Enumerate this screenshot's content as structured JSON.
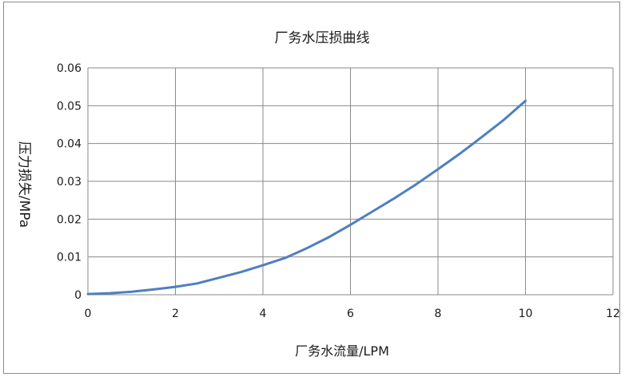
{
  "chart_data": {
    "type": "line",
    "title": "厂务水压损曲线",
    "xlabel": "厂务水流量/LPM",
    "ylabel": "压力损失/MPa",
    "xlim": [
      0,
      12
    ],
    "ylim": [
      0,
      0.06
    ],
    "x_ticks": [
      0,
      2,
      4,
      6,
      8,
      10,
      12
    ],
    "y_ticks": [
      0,
      0.01,
      0.02,
      0.03,
      0.04,
      0.05,
      0.06
    ],
    "x_tick_labels": [
      "0",
      "2",
      "4",
      "6",
      "8",
      "10",
      "12"
    ],
    "y_tick_labels": [
      "0",
      "0.01",
      "0.02",
      "0.03",
      "0.04",
      "0.05",
      "0.06"
    ],
    "grid": true,
    "series": [
      {
        "color": "#4f7fbf",
        "x": [
          0,
          0.5,
          1,
          1.5,
          2,
          2.5,
          3,
          3.5,
          4,
          4.5,
          5,
          5.5,
          6,
          6.5,
          7,
          7.5,
          8,
          8.5,
          9,
          9.5,
          10
        ],
        "y": [
          0.0002,
          0.0004,
          0.0008,
          0.0014,
          0.0021,
          0.003,
          0.0045,
          0.006,
          0.0078,
          0.0097,
          0.0123,
          0.0152,
          0.0185,
          0.022,
          0.0255,
          0.0292,
          0.0332,
          0.0373,
          0.0417,
          0.0462,
          0.0513
        ]
      }
    ]
  }
}
